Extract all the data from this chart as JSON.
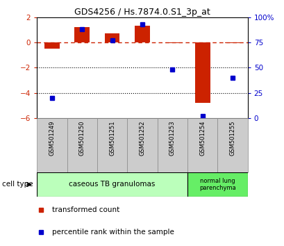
{
  "title": "GDS4256 / Hs.7874.0.S1_3p_at",
  "samples": [
    "GSM501249",
    "GSM501250",
    "GSM501251",
    "GSM501252",
    "GSM501253",
    "GSM501254",
    "GSM501255"
  ],
  "red_values": [
    -0.5,
    1.2,
    0.7,
    1.3,
    -0.05,
    -4.8,
    -0.05
  ],
  "blue_values": [
    20,
    88,
    77,
    93,
    48,
    2,
    40
  ],
  "ylim_left": [
    -6,
    2
  ],
  "ylim_right": [
    0,
    100
  ],
  "yticks_left": [
    -6,
    -4,
    -2,
    0,
    2
  ],
  "yticks_right": [
    0,
    25,
    50,
    75,
    100
  ],
  "ytick_labels_right": [
    "0",
    "25",
    "50",
    "75",
    "100%"
  ],
  "cell_type_group1_label": "caseous TB granulomas",
  "cell_type_group2_label": "normal lung\nparenchyma",
  "cell_type_group1_color": "#bbffbb",
  "cell_type_group2_color": "#66ee66",
  "cell_type_group1_samples": 5,
  "cell_type_group2_samples": 2,
  "legend_red": "transformed count",
  "legend_blue": "percentile rank within the sample",
  "cell_type_label": "cell type",
  "bar_width": 0.5,
  "red_color": "#cc2200",
  "blue_color": "#0000cc",
  "sample_box_color": "#cccccc",
  "sample_box_edge": "#888888"
}
